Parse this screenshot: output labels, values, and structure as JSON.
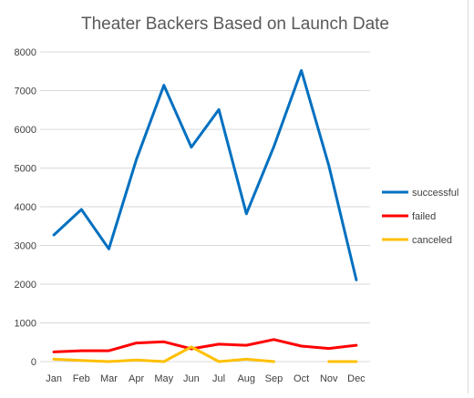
{
  "chart_data": {
    "type": "line",
    "title": "Theater Backers Based on Launch Date",
    "xlabel": "",
    "ylabel": "",
    "categories": [
      "Jan",
      "Feb",
      "Mar",
      "Apr",
      "May",
      "Jun",
      "Jul",
      "Aug",
      "Sep",
      "Oct",
      "Nov",
      "Dec"
    ],
    "ylim": [
      0,
      8000
    ],
    "yticks": [
      0,
      1000,
      2000,
      3000,
      4000,
      5000,
      6000,
      7000,
      8000
    ],
    "grid": true,
    "legend_position": "right",
    "series": [
      {
        "name": "successful",
        "color": "#0070c0",
        "values": [
          3270,
          3930,
          2910,
          5220,
          7140,
          5540,
          6510,
          3820,
          5550,
          7520,
          5060,
          2110
        ]
      },
      {
        "name": "failed",
        "color": "#ff0000",
        "values": [
          250,
          280,
          280,
          480,
          510,
          330,
          450,
          420,
          570,
          400,
          340,
          420
        ]
      },
      {
        "name": "canceled",
        "color": "#ffc000",
        "values": [
          60,
          30,
          0,
          40,
          0,
          380,
          0,
          60,
          0,
          null,
          0,
          0
        ]
      }
    ]
  }
}
